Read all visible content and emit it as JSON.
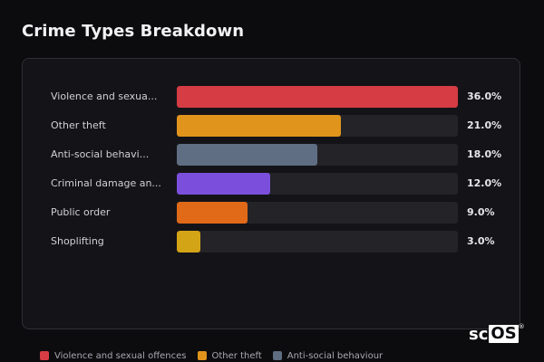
{
  "title": "Crime Types Breakdown",
  "logo": {
    "prefix": "sc",
    "boxed": "OS",
    "mark": "®"
  },
  "chart_data": {
    "type": "bar",
    "orientation": "horizontal",
    "categories": [
      "Violence and sexual offences",
      "Other theft",
      "Anti-social behaviour",
      "Criminal damage and arson",
      "Public order",
      "Shoplifting"
    ],
    "display_labels": [
      "Violence and sexua...",
      "Other theft",
      "Anti-social behavi...",
      "Criminal damage an...",
      "Public order",
      "Shoplifting"
    ],
    "values": [
      36.0,
      21.0,
      18.0,
      12.0,
      9.0,
      3.0
    ],
    "value_labels": [
      "36.0%",
      "21.0%",
      "18.0%",
      "12.0%",
      "9.0%",
      "3.0%"
    ],
    "colors": [
      "#d63c43",
      "#e0941c",
      "#5f6e82",
      "#7b4fdc",
      "#e06a18",
      "#d4a417"
    ],
    "xlim": [
      0,
      36
    ],
    "unit": "%",
    "grid": false,
    "legend": {
      "placement": "bottom",
      "entries": [
        {
          "label": "Violence and sexual offences",
          "color": "#d63c43"
        },
        {
          "label": "Other theft",
          "color": "#e0941c"
        },
        {
          "label": "Anti-social behaviour",
          "color": "#5f6e82"
        }
      ]
    }
  }
}
